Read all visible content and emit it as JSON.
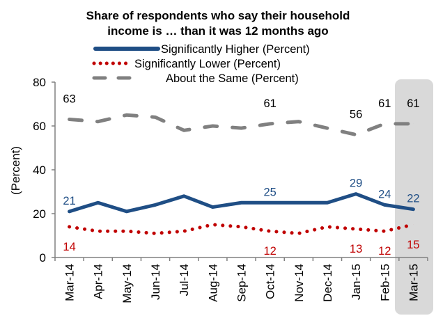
{
  "chart_data": {
    "type": "line",
    "title": [
      "Share of respondents who say their household",
      "income is … than it was 12 months ago"
    ],
    "xlabel": "",
    "ylabel": "(Percent)",
    "ylim": [
      0,
      80
    ],
    "yticks": [
      0,
      20,
      40,
      60,
      80
    ],
    "grid": false,
    "legend_position": "top-center",
    "categories": [
      "Mar-14",
      "Apr-14",
      "May-14",
      "Jun-14",
      "Jul-14",
      "Aug-14",
      "Sep-14",
      "Oct-14",
      "Nov-14",
      "Dec-14",
      "Jan-15",
      "Feb-15",
      "Mar-15"
    ],
    "highlight_category": "Mar-15",
    "series": [
      {
        "name": "Significantly Higher (Percent)",
        "color": "#1f4e85",
        "style": "solid",
        "values": [
          21,
          25,
          21,
          24,
          28,
          23,
          25,
          25,
          25,
          25,
          29,
          24,
          22
        ],
        "labels": [
          {
            "index": 0,
            "text": "21"
          },
          {
            "index": 7,
            "text": "25"
          },
          {
            "index": 10,
            "text": "29"
          },
          {
            "index": 11,
            "text": "24"
          },
          {
            "index": 12,
            "text": "22"
          }
        ]
      },
      {
        "name": "Significantly Lower (Percent)",
        "color": "#c00000",
        "style": "dotted",
        "values": [
          14,
          12,
          12,
          11,
          12,
          15,
          14,
          12,
          11,
          14,
          13,
          12,
          15
        ],
        "labels": [
          {
            "index": 0,
            "text": "14"
          },
          {
            "index": 7,
            "text": "12"
          },
          {
            "index": 10,
            "text": "13"
          },
          {
            "index": 11,
            "text": "12"
          },
          {
            "index": 12,
            "text": "15"
          }
        ]
      },
      {
        "name": "About the Same (Percent)",
        "color": "#808080",
        "style": "dashed",
        "values": [
          63,
          62,
          65,
          64,
          58,
          60,
          59,
          61,
          62,
          59,
          56,
          61,
          61
        ],
        "labels": [
          {
            "index": 0,
            "text": "63"
          },
          {
            "index": 7,
            "text": "61"
          },
          {
            "index": 10,
            "text": "56"
          },
          {
            "index": 11,
            "text": "61"
          },
          {
            "index": 12,
            "text": "61"
          }
        ]
      }
    ]
  }
}
